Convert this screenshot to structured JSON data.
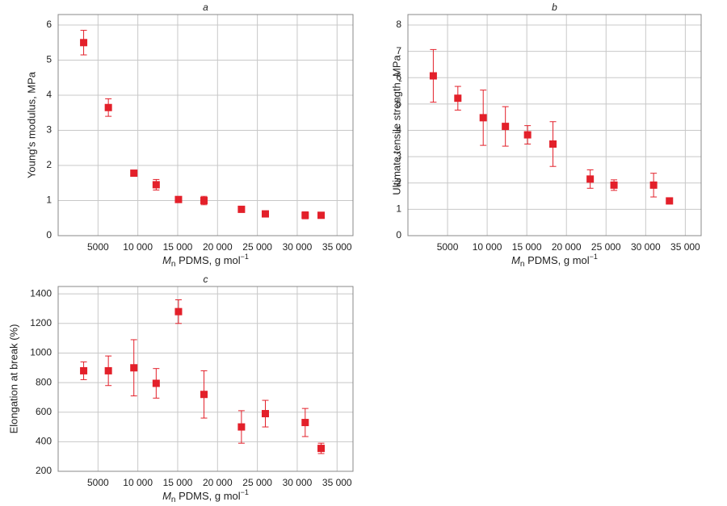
{
  "chart_data": [
    {
      "type": "scatter",
      "title": "a",
      "y_label": "Young's modulus, MPa",
      "x_label": {
        "symbol": "M",
        "subscript": "n",
        "text": " PDMS, g mol",
        "superscript": "−1"
      },
      "series": [
        {
          "color": "#e3202a",
          "x": [
            3200,
            6300,
            9500,
            12300,
            15100,
            18300,
            23000,
            26000,
            31000,
            33000
          ],
          "values": [
            5.5,
            3.65,
            1.78,
            1.45,
            1.03,
            1.0,
            0.75,
            0.62,
            0.58,
            0.58
          ],
          "errors": [
            0.35,
            0.25,
            0.08,
            0.15,
            0.06,
            0.12,
            0.05,
            0.05,
            0.1,
            0.06
          ]
        }
      ],
      "xlim": [
        0,
        37000
      ],
      "ylim": [
        0,
        6.3
      ],
      "xticks": [
        5000,
        {
          "value": 10000,
          "label": "10 000"
        },
        {
          "value": 15000,
          "label": "15 000"
        },
        {
          "value": 20000,
          "label": "20 000"
        },
        {
          "value": 25000,
          "label": "25 000"
        },
        {
          "value": 30000,
          "label": "30 000"
        },
        {
          "value": 35000,
          "label": "35 000"
        }
      ],
      "yticks": [
        0,
        1,
        2,
        3,
        4,
        5,
        6
      ],
      "grid": true
    },
    {
      "type": "scatter",
      "title": "b",
      "y_label": "Ultimate tensile strength, MPa",
      "x_label": {
        "symbol": "M",
        "subscript": "n",
        "text": " PDMS, g mol",
        "superscript": "−1"
      },
      "series": [
        {
          "color": "#e3202a",
          "x": [
            3200,
            6300,
            9500,
            12300,
            15100,
            18300,
            23000,
            26000,
            31000,
            33000
          ],
          "values": [
            6.07,
            5.22,
            4.48,
            4.15,
            3.83,
            3.48,
            2.15,
            1.92,
            1.92,
            1.32
          ],
          "errors": [
            1.0,
            0.45,
            1.05,
            0.75,
            0.35,
            0.85,
            0.35,
            0.2,
            0.45,
            0.1
          ]
        }
      ],
      "xlim": [
        0,
        37000
      ],
      "ylim": [
        0,
        8.4
      ],
      "xticks": [
        5000,
        {
          "value": 10000,
          "label": "10 000"
        },
        {
          "value": 15000,
          "label": "15 000"
        },
        {
          "value": 20000,
          "label": "20 000"
        },
        {
          "value": 25000,
          "label": "25 000"
        },
        {
          "value": 30000,
          "label": "30 000"
        },
        {
          "value": 35000,
          "label": "35 000"
        }
      ],
      "yticks": [
        0,
        1,
        2,
        3,
        4,
        5,
        6,
        7,
        8
      ],
      "grid": true
    },
    {
      "type": "scatter",
      "title": "c",
      "y_label": "Elongation at break (%)",
      "x_label": {
        "symbol": "M",
        "subscript": "n",
        "text": " PDMS, g mol",
        "superscript": "−1"
      },
      "series": [
        {
          "color": "#e3202a",
          "x": [
            3200,
            6300,
            9500,
            12300,
            15100,
            18300,
            23000,
            26000,
            31000,
            33000
          ],
          "values": [
            880,
            880,
            900,
            795,
            1280,
            720,
            500,
            590,
            530,
            355
          ],
          "errors": [
            60,
            100,
            190,
            100,
            80,
            160,
            110,
            90,
            95,
            35
          ]
        }
      ],
      "xlim": [
        0,
        37000
      ],
      "ylim": [
        200,
        1450
      ],
      "xticks": [
        5000,
        {
          "value": 10000,
          "label": "10 000"
        },
        {
          "value": 15000,
          "label": "15 000"
        },
        {
          "value": 20000,
          "label": "20 000"
        },
        {
          "value": 25000,
          "label": "25 000"
        },
        {
          "value": 30000,
          "label": "30 000"
        },
        {
          "value": 35000,
          "label": "35 000"
        }
      ],
      "yticks": [
        200,
        400,
        600,
        800,
        1000,
        1200,
        1400
      ],
      "grid": true
    }
  ]
}
